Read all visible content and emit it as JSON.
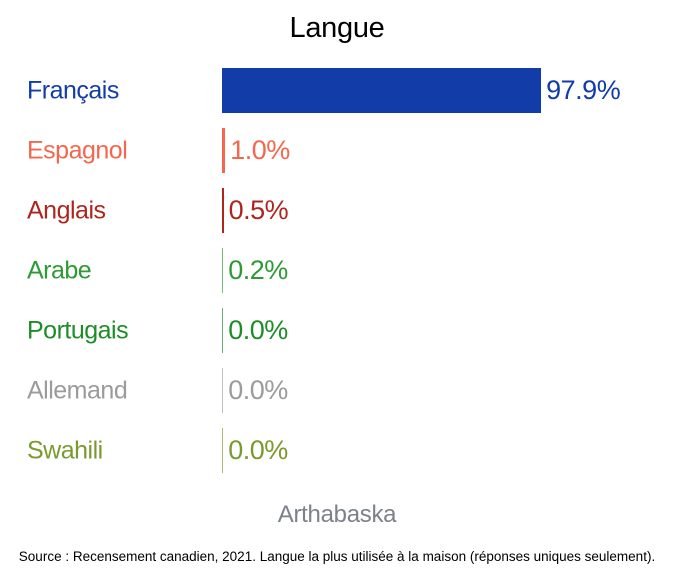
{
  "title": "Langue",
  "footer": {
    "region": "Arthabaska",
    "source": "Source : Recensement canadien, 2021. Langue la plus utilisée à la maison (réponses uniques seulement)."
  },
  "chart_data": {
    "type": "bar",
    "orientation": "horizontal",
    "title": "Langue",
    "subtitle": "Arthabaska",
    "unit": "%",
    "xlim": [
      0,
      100
    ],
    "grid": false,
    "legend": "none",
    "categories": [
      "Français",
      "Espagnol",
      "Anglais",
      "Arabe",
      "Portugais",
      "Allemand",
      "Swahili"
    ],
    "values": [
      97.9,
      1.0,
      0.5,
      0.2,
      0.0,
      0.0,
      0.0
    ],
    "value_labels": [
      "97.9%",
      "1.0%",
      "0.5%",
      "0.2%",
      "0.0%",
      "0.0%",
      "0.0%"
    ],
    "colors": [
      "#123da8",
      "#f4674d",
      "#b0241e",
      "#2d9a35",
      "#1e8c27",
      "#9b9b9b",
      "#7a9a2e"
    ]
  }
}
